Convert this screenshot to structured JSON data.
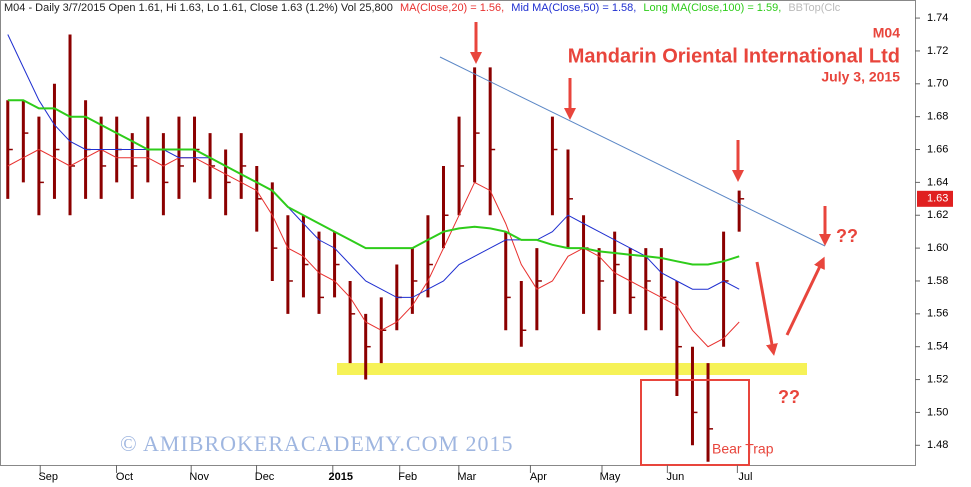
{
  "chart_data": {
    "type": "ohlc",
    "header": {
      "info": "M04 - Daily 3/7/2015 Open 1.61, Hi 1.63, Lo 1.61, Close 1.63 (1.2%) Vol 25,800",
      "bb_label": "BBTop(Clc"
    },
    "symbol": "M04",
    "title": "Mandarin Oriental International Ltd",
    "subtitle": "July 3, 2015",
    "annotations": [
      "??",
      "??",
      "Bear Trap"
    ],
    "watermark": "© AMIBROKERACADEMY.COM 2015",
    "color": "#8b0000",
    "x": [
      0,
      1,
      2,
      3,
      4,
      5,
      6,
      7,
      8,
      9,
      10,
      11,
      12,
      13,
      14,
      15,
      16,
      17,
      18,
      19,
      20,
      21,
      22,
      23,
      24,
      25,
      26,
      27,
      28,
      29,
      30,
      31,
      32,
      33,
      34,
      35,
      36,
      37,
      38,
      39,
      40,
      41,
      42,
      43,
      44,
      45,
      46,
      47
    ],
    "high": [
      1.69,
      1.69,
      1.68,
      1.7,
      1.73,
      1.69,
      1.68,
      1.68,
      1.67,
      1.68,
      1.67,
      1.68,
      1.68,
      1.67,
      1.66,
      1.67,
      1.65,
      1.64,
      1.62,
      1.62,
      1.61,
      1.61,
      1.58,
      1.56,
      1.57,
      1.59,
      1.6,
      1.62,
      1.65,
      1.68,
      1.71,
      1.71,
      1.61,
      1.58,
      1.6,
      1.68,
      1.66,
      1.62,
      1.6,
      1.61,
      1.6,
      1.6,
      1.6,
      1.58,
      1.54,
      1.53,
      1.61,
      1.635
    ],
    "low": [
      1.63,
      1.64,
      1.62,
      1.63,
      1.62,
      1.63,
      1.63,
      1.64,
      1.63,
      1.64,
      1.62,
      1.63,
      1.64,
      1.63,
      1.62,
      1.63,
      1.61,
      1.58,
      1.56,
      1.57,
      1.56,
      1.57,
      1.53,
      1.52,
      1.53,
      1.55,
      1.56,
      1.57,
      1.6,
      1.62,
      1.64,
      1.62,
      1.55,
      1.54,
      1.55,
      1.62,
      1.6,
      1.56,
      1.55,
      1.56,
      1.56,
      1.55,
      1.55,
      1.51,
      1.48,
      1.47,
      1.54,
      1.61
    ],
    "close": [
      1.66,
      1.67,
      1.64,
      1.66,
      1.65,
      1.66,
      1.65,
      1.66,
      1.65,
      1.66,
      1.64,
      1.65,
      1.66,
      1.65,
      1.64,
      1.65,
      1.63,
      1.6,
      1.58,
      1.59,
      1.57,
      1.59,
      1.56,
      1.54,
      1.55,
      1.57,
      1.58,
      1.59,
      1.62,
      1.65,
      1.67,
      1.66,
      1.57,
      1.55,
      1.58,
      1.66,
      1.63,
      1.6,
      1.58,
      1.59,
      1.57,
      1.58,
      1.57,
      1.54,
      1.5,
      1.49,
      1.58,
      1.63
    ],
    "series": [
      {
        "name": "MA(Close,20) = 1.56,",
        "color": "#e8312f",
        "values": [
          1.65,
          1.655,
          1.66,
          1.655,
          1.65,
          1.655,
          1.66,
          1.655,
          1.655,
          1.655,
          1.65,
          1.655,
          1.655,
          1.65,
          1.645,
          1.64,
          1.635,
          1.62,
          1.6,
          1.595,
          1.585,
          1.58,
          1.57,
          1.555,
          1.55,
          1.555,
          1.565,
          1.58,
          1.6,
          1.62,
          1.64,
          1.635,
          1.615,
          1.59,
          1.575,
          1.58,
          1.595,
          1.6,
          1.595,
          1.585,
          1.58,
          1.575,
          1.57,
          1.565,
          1.55,
          1.54,
          1.545,
          1.555
        ]
      },
      {
        "name": "Mid MA(Close,50) = 1.58,",
        "color": "#1f2fd0",
        "values": [
          1.73,
          1.71,
          1.69,
          1.675,
          1.665,
          1.66,
          1.66,
          1.66,
          1.66,
          1.66,
          1.66,
          1.655,
          1.655,
          1.655,
          1.65,
          1.645,
          1.64,
          1.635,
          1.625,
          1.615,
          1.605,
          1.6,
          1.59,
          1.58,
          1.575,
          1.57,
          1.57,
          1.575,
          1.58,
          1.59,
          1.595,
          1.6,
          1.605,
          1.605,
          1.605,
          1.61,
          1.62,
          1.615,
          1.61,
          1.605,
          1.6,
          1.595,
          1.585,
          1.58,
          1.575,
          1.575,
          1.58,
          1.575
        ]
      },
      {
        "name": "Long MA(Close,100) = 1.59,",
        "color": "#2ecc1a",
        "values": [
          1.69,
          1.69,
          1.685,
          1.685,
          1.68,
          1.68,
          1.675,
          1.67,
          1.665,
          1.66,
          1.66,
          1.66,
          1.66,
          1.655,
          1.65,
          1.645,
          1.64,
          1.635,
          1.625,
          1.62,
          1.615,
          1.61,
          1.605,
          1.6,
          1.6,
          1.6,
          1.6,
          1.605,
          1.61,
          1.612,
          1.613,
          1.612,
          1.61,
          1.605,
          1.605,
          1.602,
          1.6,
          1.6,
          1.598,
          1.597,
          1.596,
          1.595,
          1.594,
          1.592,
          1.59,
          1.59,
          1.592,
          1.595
        ]
      }
    ],
    "xlim": [
      -0.5,
      58.3
    ],
    "ylim": [
      1.468,
      1.751
    ],
    "xticks": [
      {
        "value": 2.6,
        "label": "Sep"
      },
      {
        "value": 7.5,
        "label": "Oct"
      },
      {
        "value": 12.3,
        "label": "Nov"
      },
      {
        "value": 16.5,
        "label": "Dec"
      },
      {
        "value": 21.4,
        "label": "2015"
      },
      {
        "value": 25.7,
        "label": "Feb"
      },
      {
        "value": 29.5,
        "label": "Mar"
      },
      {
        "value": 34.1,
        "label": "Apr"
      },
      {
        "value": 38.7,
        "label": "May"
      },
      {
        "value": 42.9,
        "label": "Jun"
      },
      {
        "value": 47.4,
        "label": "Jul"
      }
    ],
    "yticks": [
      1.48,
      {
        "value": 1.5,
        "label": "1.50"
      },
      1.52,
      1.54,
      1.56,
      1.58,
      {
        "value": 1.6,
        "label": "1.60"
      },
      1.62,
      1.64,
      1.66,
      1.68,
      {
        "value": 1.7,
        "label": "1.70"
      },
      1.72,
      1.74
    ]
  }
}
